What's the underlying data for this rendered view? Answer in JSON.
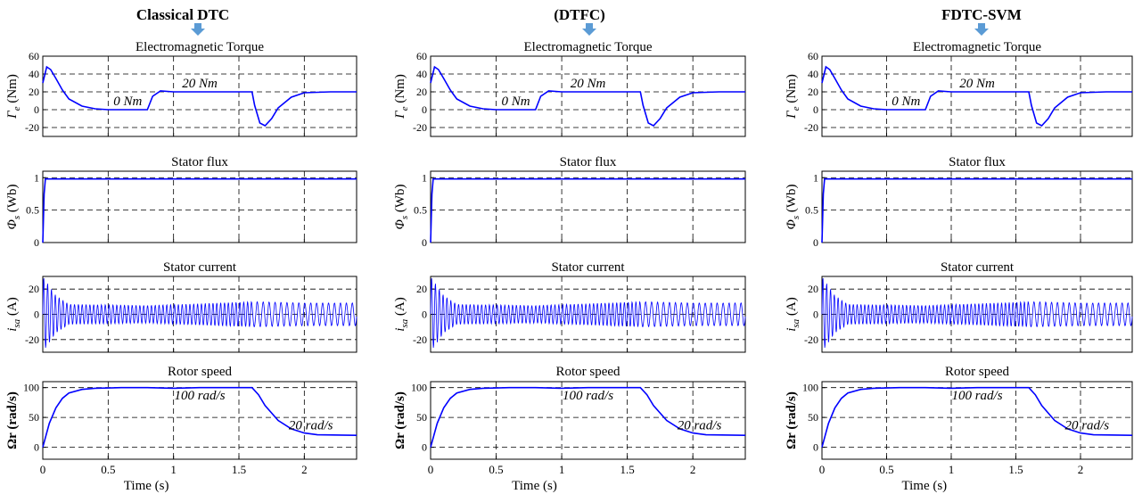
{
  "columns": [
    {
      "heading": "Classical DTC",
      "key": "classical"
    },
    {
      "heading": "(DTFC)",
      "key": "dtfc"
    },
    {
      "heading": "FDTC-SVM",
      "key": "fdtc"
    }
  ],
  "arrow_color": "#5b9bd5",
  "trace_color": "#0000ff",
  "xlabel": "Time (s)",
  "chart_data": [
    {
      "type": "line",
      "title": "Electromagnetic Torque",
      "ylabel": "Γ_e (Nm)",
      "ylim": [
        -30,
        60
      ],
      "yticks": [
        -20,
        0,
        20,
        40,
        60
      ],
      "xlim": [
        0,
        2.4
      ],
      "xticks": [
        0,
        0.5,
        1,
        1.5,
        2
      ],
      "grid": true,
      "annotations": [
        {
          "text": "0 Nm",
          "x": 0.65,
          "y": 5
        },
        {
          "text": "20 Nm",
          "x": 1.2,
          "y": 25
        }
      ],
      "series": [
        {
          "column": "Classical DTC",
          "x": [
            0,
            0.03,
            0.06,
            0.1,
            0.15,
            0.2,
            0.3,
            0.4,
            0.5,
            0.6,
            0.7,
            0.8,
            0.84,
            0.9,
            1.0,
            1.2,
            1.4,
            1.6,
            1.62,
            1.66,
            1.7,
            1.75,
            1.8,
            1.9,
            2.0,
            2.2,
            2.4
          ],
          "y": [
            30,
            48,
            45,
            35,
            22,
            12,
            4,
            1,
            0,
            0,
            0,
            0,
            15,
            21,
            20,
            20,
            20,
            20,
            5,
            -15,
            -18,
            -10,
            2,
            14,
            19,
            20,
            20
          ]
        },
        {
          "column": "(DTFC)",
          "x": [
            0,
            0.03,
            0.06,
            0.1,
            0.15,
            0.2,
            0.3,
            0.4,
            0.5,
            0.6,
            0.7,
            0.8,
            0.84,
            0.9,
            1.0,
            1.2,
            1.4,
            1.6,
            1.62,
            1.66,
            1.7,
            1.75,
            1.8,
            1.9,
            2.0,
            2.2,
            2.4
          ],
          "y": [
            30,
            48,
            45,
            35,
            22,
            12,
            4,
            1,
            0,
            0,
            0,
            0,
            15,
            21,
            20,
            20,
            20,
            20,
            5,
            -15,
            -18,
            -10,
            2,
            14,
            19,
            20,
            20
          ]
        },
        {
          "column": "FDTC-SVM",
          "x": [
            0,
            0.03,
            0.06,
            0.1,
            0.15,
            0.2,
            0.3,
            0.4,
            0.5,
            0.6,
            0.7,
            0.8,
            0.84,
            0.9,
            1.0,
            1.2,
            1.4,
            1.6,
            1.62,
            1.66,
            1.7,
            1.75,
            1.8,
            1.9,
            2.0,
            2.2,
            2.4
          ],
          "y": [
            30,
            48,
            45,
            35,
            22,
            12,
            4,
            1,
            0,
            0,
            0,
            0,
            15,
            21,
            20,
            20,
            20,
            20,
            5,
            -15,
            -18,
            -10,
            2,
            14,
            19,
            20,
            20
          ]
        }
      ]
    },
    {
      "type": "line",
      "title": "Stator flux",
      "ylabel": "Φ_s (Wb)",
      "ylim": [
        0,
        1.1
      ],
      "yticks": [
        0,
        0.5,
        1
      ],
      "xlim": [
        0,
        2.4
      ],
      "xticks": [
        0,
        0.5,
        1,
        1.5,
        2
      ],
      "grid": true,
      "series": [
        {
          "column": "Classical DTC",
          "x": [
            0,
            0.01,
            0.02,
            2.4
          ],
          "y": [
            0,
            0.75,
            0.98,
            0.98
          ]
        },
        {
          "column": "(DTFC)",
          "x": [
            0,
            0.01,
            0.02,
            2.4
          ],
          "y": [
            0,
            0.75,
            0.98,
            0.98
          ]
        },
        {
          "column": "FDTC-SVM",
          "x": [
            0,
            0.01,
            0.02,
            2.4
          ],
          "y": [
            0,
            0.75,
            0.98,
            0.98
          ]
        }
      ]
    },
    {
      "type": "line",
      "title": "Stator current",
      "ylabel": "i_sa (A)",
      "ylim": [
        -30,
        30
      ],
      "yticks": [
        -20,
        0,
        20
      ],
      "xlim": [
        0,
        2.4
      ],
      "xticks": [
        0,
        0.5,
        1,
        1.5,
        2
      ],
      "grid": true,
      "series": [
        {
          "column": "Classical DTC",
          "x": [
            0,
            0.1,
            0.2,
            0.8,
            1.6,
            2.0,
            2.4
          ],
          "y_amplitude": [
            30,
            15,
            8,
            7,
            10,
            9,
            9
          ]
        },
        {
          "column": "(DTFC)",
          "x": [
            0,
            0.1,
            0.2,
            0.8,
            1.6,
            2.0,
            2.4
          ],
          "y_amplitude": [
            30,
            15,
            8,
            7,
            10,
            9,
            9
          ]
        },
        {
          "column": "FDTC-SVM",
          "x": [
            0,
            0.1,
            0.2,
            0.8,
            1.6,
            2.0,
            2.4
          ],
          "y_amplitude": [
            30,
            15,
            8,
            7,
            10,
            9,
            9
          ]
        }
      ]
    },
    {
      "type": "line",
      "title": "Rotor speed",
      "ylabel": "Ωr (rad/s)",
      "ylim": [
        -20,
        110
      ],
      "yticks": [
        0,
        50,
        100
      ],
      "xlim": [
        0,
        2.4
      ],
      "xticks": [
        0,
        0.5,
        1,
        1.5,
        2
      ],
      "grid": true,
      "annotations": [
        {
          "text": "100 rad/s",
          "x": 1.2,
          "y": 80
        },
        {
          "text": "20 rad/s",
          "x": 2.05,
          "y": 30
        }
      ],
      "series": [
        {
          "column": "Classical DTC",
          "x": [
            0,
            0.05,
            0.1,
            0.15,
            0.2,
            0.3,
            0.4,
            0.6,
            0.8,
            1.0,
            1.2,
            1.4,
            1.6,
            1.65,
            1.7,
            1.8,
            1.9,
            2.0,
            2.1,
            2.4
          ],
          "y": [
            0,
            40,
            66,
            82,
            91,
            97,
            99,
            100,
            100,
            99,
            100,
            100,
            100,
            88,
            70,
            45,
            31,
            24,
            21,
            20
          ]
        },
        {
          "column": "(DTFC)",
          "x": [
            0,
            0.05,
            0.1,
            0.15,
            0.2,
            0.3,
            0.4,
            0.6,
            0.8,
            1.0,
            1.2,
            1.4,
            1.6,
            1.65,
            1.7,
            1.8,
            1.9,
            2.0,
            2.1,
            2.4
          ],
          "y": [
            0,
            40,
            66,
            82,
            91,
            97,
            99,
            100,
            100,
            99,
            100,
            100,
            100,
            88,
            70,
            45,
            31,
            24,
            21,
            20
          ]
        },
        {
          "column": "FDTC-SVM",
          "x": [
            0,
            0.05,
            0.1,
            0.15,
            0.2,
            0.3,
            0.4,
            0.6,
            0.8,
            1.0,
            1.2,
            1.4,
            1.6,
            1.65,
            1.7,
            1.8,
            1.9,
            2.0,
            2.1,
            2.4
          ],
          "y": [
            0,
            40,
            66,
            82,
            91,
            97,
            99,
            100,
            100,
            99,
            100,
            100,
            100,
            88,
            70,
            45,
            31,
            24,
            21,
            20
          ]
        }
      ]
    }
  ]
}
